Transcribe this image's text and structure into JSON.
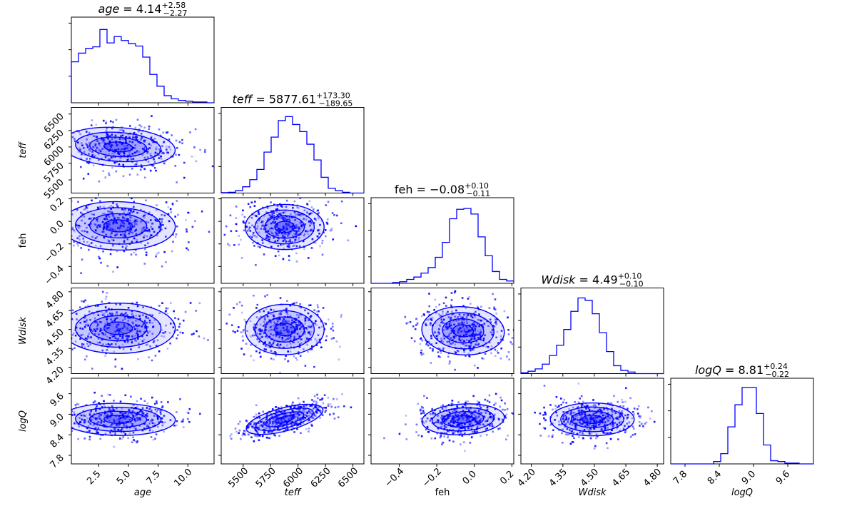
{
  "chart_data": {
    "type": "corner",
    "colors": {
      "main": "#0000ff"
    },
    "parameters": [
      {
        "key": "age",
        "label": "age",
        "italic": true,
        "range": [
          0.2,
          12.2
        ],
        "ticks": [
          2.5,
          5.0,
          7.5,
          10.0
        ],
        "tick_labels": [
          "2.5",
          "5.0",
          "7.5",
          "10.0"
        ],
        "title": {
          "name": "age",
          "value": "4.14",
          "plus": "+2.58",
          "minus": "−2.27"
        },
        "hist": [
          0.52,
          0.63,
          0.69,
          0.71,
          0.93,
          0.76,
          0.84,
          0.79,
          0.75,
          0.72,
          0.58,
          0.36,
          0.21,
          0.09,
          0.05,
          0.03,
          0.02,
          0.01,
          0.01,
          0.0
        ]
      },
      {
        "key": "teff",
        "label": "teff",
        "italic": true,
        "range": [
          5300,
          6600
        ],
        "ticks": [
          5500,
          5750,
          6000,
          6250,
          6500
        ],
        "tick_labels": [
          "5500",
          "5750",
          "6000",
          "6250",
          "6500"
        ],
        "title": {
          "name": "teff",
          "value": "5877.61",
          "plus": "+173.30",
          "minus": "−189.65"
        },
        "hist": [
          0.005,
          0.01,
          0.03,
          0.08,
          0.17,
          0.3,
          0.52,
          0.71,
          0.92,
          0.97,
          0.87,
          0.78,
          0.62,
          0.42,
          0.2,
          0.06,
          0.03,
          0.01,
          0.0,
          0.0
        ]
      },
      {
        "key": "feh",
        "label": "feh",
        "italic": false,
        "range": [
          -0.55,
          0.21
        ],
        "ticks": [
          -0.4,
          -0.2,
          0.0,
          0.2
        ],
        "tick_labels": [
          "−0.4",
          "−0.2",
          "0.0",
          "0.2"
        ],
        "ytick_labels": [
          "−0.4",
          "−0.2",
          "0.0",
          "0.2"
        ],
        "title": {
          "name": "feh",
          "value": "−0.08",
          "plus": "+0.10",
          "minus": "−0.11"
        },
        "hist": [
          0.0,
          0.0,
          0.0,
          0.01,
          0.02,
          0.05,
          0.08,
          0.13,
          0.2,
          0.33,
          0.52,
          0.82,
          0.94,
          0.95,
          0.88,
          0.59,
          0.35,
          0.15,
          0.05,
          0.03
        ]
      },
      {
        "key": "Wdisk",
        "label": "Wdisk",
        "italic": true,
        "range": [
          4.15,
          4.83
        ],
        "ticks": [
          4.2,
          4.35,
          4.5,
          4.65,
          4.8
        ],
        "tick_labels": [
          "4.20",
          "4.35",
          "4.50",
          "4.65",
          "4.80"
        ],
        "title": {
          "name": "Wdisk",
          "value": "4.49",
          "plus": "+0.10",
          "minus": "−0.10"
        },
        "hist": [
          0.01,
          0.03,
          0.06,
          0.12,
          0.23,
          0.36,
          0.56,
          0.79,
          0.96,
          0.93,
          0.76,
          0.52,
          0.28,
          0.1,
          0.04,
          0.02,
          0.0,
          0.0,
          0.0,
          0.0
        ]
      },
      {
        "key": "logQ",
        "label": "logQ",
        "italic": true,
        "range": [
          7.55,
          10.05
        ],
        "ticks": [
          7.8,
          8.4,
          9.0,
          9.6
        ],
        "tick_labels": [
          "7.8",
          "8.4",
          "9.0",
          "9.6"
        ],
        "title": {
          "name": "logQ",
          "value": "8.81",
          "plus": "+0.24",
          "minus": "−0.22"
        },
        "hist": [
          0.0,
          0.0,
          0.0,
          0.0,
          0.0,
          0.0,
          0.03,
          0.13,
          0.47,
          0.75,
          0.97,
          0.97,
          0.64,
          0.24,
          0.04,
          0.03,
          0.01,
          0.01,
          0.0,
          0.0
        ]
      }
    ],
    "pairs": [
      {
        "x": "age",
        "y": "teff",
        "mean": [
          4.14,
          6000
        ],
        "sd": [
          2.4,
          160
        ],
        "corr": -0.18
      },
      {
        "x": "age",
        "y": "feh",
        "mean": [
          4.14,
          -0.04
        ],
        "sd": [
          2.4,
          0.11
        ],
        "corr": -0.05
      },
      {
        "x": "teff",
        "y": "feh",
        "mean": [
          5877.61,
          -0.05
        ],
        "sd": [
          180,
          0.1
        ],
        "corr": 0.0
      },
      {
        "x": "age",
        "y": "Wdisk",
        "mean": [
          4.14,
          4.51
        ],
        "sd": [
          2.4,
          0.1
        ],
        "corr": 0.0
      },
      {
        "x": "teff",
        "y": "Wdisk",
        "mean": [
          5877.61,
          4.5
        ],
        "sd": [
          180,
          0.1
        ],
        "corr": 0.0
      },
      {
        "x": "feh",
        "y": "Wdisk",
        "mean": [
          -0.06,
          4.49
        ],
        "sd": [
          0.11,
          0.1
        ],
        "corr": -0.1
      },
      {
        "x": "age",
        "y": "logQ",
        "mean": [
          4.14,
          8.85
        ],
        "sd": [
          2.4,
          0.24
        ],
        "corr": -0.05
      },
      {
        "x": "teff",
        "y": "logQ",
        "mean": [
          5877.61,
          8.85
        ],
        "sd": [
          180,
          0.24
        ],
        "corr": 0.65
      },
      {
        "x": "feh",
        "y": "logQ",
        "mean": [
          -0.06,
          8.85
        ],
        "sd": [
          0.11,
          0.24
        ],
        "corr": 0.15
      },
      {
        "x": "Wdisk",
        "y": "logQ",
        "mean": [
          4.49,
          8.85
        ],
        "sd": [
          0.1,
          0.24
        ],
        "corr": 0.0
      }
    ]
  }
}
